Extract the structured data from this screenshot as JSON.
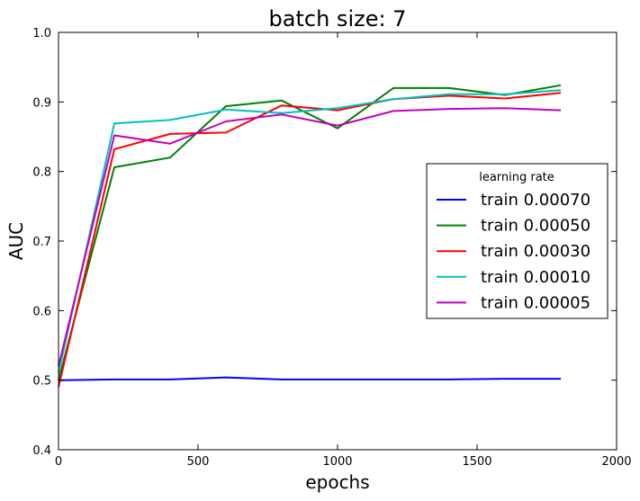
{
  "chart_data": {
    "type": "line",
    "title": "batch size: 7",
    "xlabel": "epochs",
    "ylabel": "AUC",
    "xlim": [
      0,
      2000
    ],
    "ylim": [
      0.4,
      1.0
    ],
    "xticks": [
      0,
      500,
      1000,
      1500,
      2000
    ],
    "yticks": [
      0.4,
      0.5,
      0.6,
      0.7,
      0.8,
      0.9,
      1.0
    ],
    "xtick_labels": [
      "0",
      "500",
      "1000",
      "1500",
      "2000"
    ],
    "ytick_labels": [
      "0.4",
      "0.5",
      "0.6",
      "0.7",
      "0.8",
      "0.9",
      "1.0"
    ],
    "grid": false,
    "legend": {
      "title": "learning rate",
      "placement": "center-right"
    },
    "x": [
      0,
      200,
      400,
      600,
      800,
      1000,
      1200,
      1400,
      1600,
      1800
    ],
    "series": [
      {
        "name": "train 0.00070",
        "color": "#0000ff",
        "values": [
          0.5,
          0.501,
          0.501,
          0.504,
          0.501,
          0.501,
          0.501,
          0.501,
          0.502,
          0.502
        ]
      },
      {
        "name": "train 0.00050",
        "color": "#008000",
        "values": [
          0.5,
          0.806,
          0.82,
          0.894,
          0.902,
          0.862,
          0.92,
          0.92,
          0.91,
          0.924
        ]
      },
      {
        "name": "train 0.00030",
        "color": "#ff0000",
        "values": [
          0.49,
          0.832,
          0.854,
          0.856,
          0.895,
          0.888,
          0.904,
          0.909,
          0.905,
          0.913
        ]
      },
      {
        "name": "train 0.00010",
        "color": "#00bfbf",
        "values": [
          0.51,
          0.869,
          0.874,
          0.889,
          0.884,
          0.891,
          0.904,
          0.911,
          0.911,
          0.917
        ]
      },
      {
        "name": "train 0.00005",
        "color": "#bf00bf",
        "values": [
          0.52,
          0.852,
          0.84,
          0.872,
          0.882,
          0.866,
          0.887,
          0.89,
          0.891,
          0.888
        ]
      }
    ]
  }
}
